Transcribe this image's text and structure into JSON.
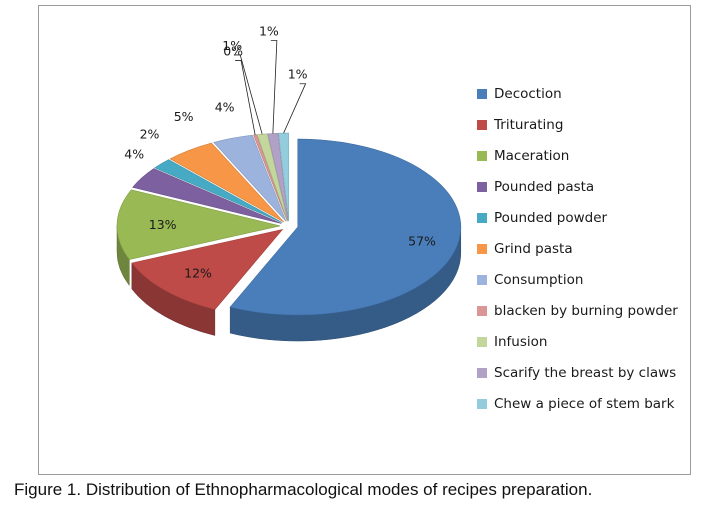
{
  "chart_data": {
    "type": "pie",
    "style": "3d-exploded",
    "legend_position": "right",
    "categories": [
      "Decoction",
      "Triturating",
      "Maceration",
      "Pounded pasta",
      "Pounded powder",
      "Grind pasta",
      "Consumption",
      "blacken by burning powder",
      "Infusion",
      "Scarify the breast by claws",
      "Chew a piece of stem bark"
    ],
    "values": [
      57,
      12,
      13,
      4,
      2,
      5,
      4,
      0,
      1,
      1,
      1
    ],
    "data_labels": [
      "57%",
      "12%",
      "13%",
      "4%",
      "2%",
      "5%",
      "4%",
      "0%",
      "1%",
      "1%",
      "1%"
    ],
    "colors": [
      "#4a7ebb",
      "#be4b48",
      "#98b954",
      "#7d60a0",
      "#46aac5",
      "#f79646",
      "#9bb3dd",
      "#d99694",
      "#c3d69b",
      "#b2a1c7",
      "#93cddd"
    ]
  },
  "caption": {
    "lead": "Figure 1",
    "text": ". Distribution of Ethnopharmacological modes of recipes preparation."
  }
}
